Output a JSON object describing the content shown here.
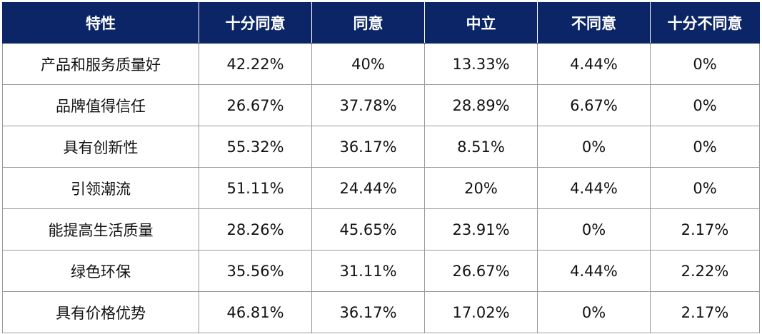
{
  "table": {
    "header": [
      "特性",
      "十分同意",
      "同意",
      "中立",
      "不同意",
      "十分不同意"
    ],
    "rows": [
      [
        "产品和服务质量好",
        "42.22%",
        "40%",
        "13.33%",
        "4.44%",
        "0%"
      ],
      [
        "品牌值得信任",
        "26.67%",
        "37.78%",
        "28.89%",
        "6.67%",
        "0%"
      ],
      [
        "具有创新性",
        "55.32%",
        "36.17%",
        "8.51%",
        "0%",
        "0%"
      ],
      [
        "引领潮流",
        "51.11%",
        "24.44%",
        "20%",
        "4.44%",
        "0%"
      ],
      [
        "能提高生活质量",
        "28.26%",
        "45.65%",
        "23.91%",
        "0%",
        "2.17%"
      ],
      [
        "绿色环保",
        "35.56%",
        "31.11%",
        "26.67%",
        "4.44%",
        "2.22%"
      ],
      [
        "具有价格优势",
        "46.81%",
        "36.17%",
        "17.02%",
        "0%",
        "2.17%"
      ]
    ]
  }
}
